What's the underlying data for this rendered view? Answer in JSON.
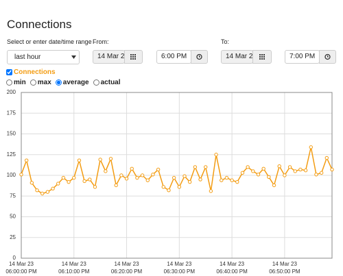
{
  "header": {
    "title": "Connections"
  },
  "controls": {
    "range_label": "Select or enter date/time range",
    "range_value": "last hour",
    "from_label": "From:",
    "from_date": "14 Mar 2",
    "from_time": "6:00 PM",
    "to_label": "To:",
    "to_date": "14 Mar 2",
    "to_time": "7:00 PM"
  },
  "modes": [
    "min",
    "max",
    "average",
    "actual"
  ],
  "chart_data": {
    "type": "line",
    "x": [
      0,
      1,
      2,
      3,
      4,
      5,
      6,
      7,
      8,
      9,
      10,
      11,
      12,
      13,
      14,
      15,
      16,
      17,
      18,
      19,
      20,
      21,
      22,
      23,
      24,
      25,
      26,
      27,
      28,
      29,
      30,
      31,
      32,
      33,
      34,
      35,
      36,
      37,
      38,
      39,
      40,
      41,
      42,
      43,
      44,
      45,
      46,
      47,
      48,
      49,
      50,
      51,
      52,
      53,
      54,
      55,
      56,
      57,
      58,
      59
    ],
    "series": [
      {
        "name": "Connections",
        "color": "#f39c12",
        "values": [
          101,
          118,
          91,
          82,
          78,
          80,
          84,
          90,
          97,
          92,
          97,
          118,
          93,
          95,
          86,
          119,
          105,
          120,
          88,
          100,
          96,
          108,
          97,
          100,
          94,
          101,
          107,
          86,
          82,
          97,
          86,
          99,
          92,
          110,
          95,
          110,
          81,
          125,
          94,
          97,
          94,
          92,
          103,
          110,
          105,
          101,
          108,
          98,
          88,
          111,
          100,
          110,
          105,
          107,
          106,
          134,
          101,
          103,
          121,
          107
        ]
      }
    ],
    "xlim": [
      0,
      59
    ],
    "ylim": [
      0,
      200
    ],
    "xticks": [
      {
        "value": 0,
        "label": "14 Mar 23\n06:00:00 PM"
      },
      {
        "value": 10,
        "label": "14 Mar 23\n06:10:00 PM"
      },
      {
        "value": 20,
        "label": "14 Mar 23\n06:20:00 PM"
      },
      {
        "value": 30,
        "label": "14 Mar 23\n06:30:00 PM"
      },
      {
        "value": 40,
        "label": "14 Mar 23\n06:40:00 PM"
      },
      {
        "value": 50,
        "label": "14 Mar 23\n06:50:00 PM"
      }
    ],
    "yticks": [
      0,
      25,
      50,
      75,
      100,
      125,
      150,
      175,
      200
    ],
    "grid": true
  }
}
